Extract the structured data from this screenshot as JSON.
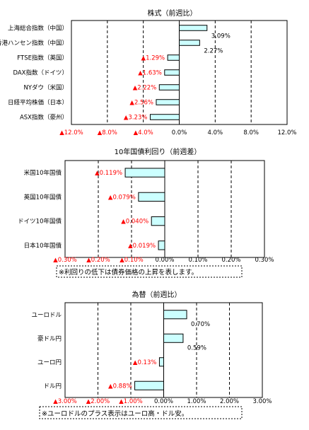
{
  "chart_data": [
    {
      "type": "bar",
      "orientation": "horizontal",
      "title": "株式（前週比）",
      "categories": [
        "上海総合指数（中国）",
        "香港ハンセン指数（中国）",
        "FTSE指数（英国）",
        "DAX指数（ドイツ）",
        "NYダウ（米国）",
        "日経平均株価（日本）",
        "ASX指数（豪州）"
      ],
      "values": [
        3.09,
        2.27,
        -1.29,
        -1.63,
        -2.22,
        -2.56,
        -3.23
      ],
      "value_labels": [
        "3.09%",
        "2.27%",
        "▲1.29%",
        "▲1.63%",
        "▲2.22%",
        "▲2.56%",
        "▲3.23%"
      ],
      "xlim": [
        -12,
        12
      ],
      "ticks": [
        -12,
        -8,
        -4,
        0,
        4,
        8,
        12
      ],
      "tick_labels": [
        "▲12.0%",
        "▲8.0%",
        "▲4.0%",
        "0.0%",
        "4.0%",
        "8.0%",
        "12.0%"
      ],
      "grid": true,
      "note": ""
    },
    {
      "type": "bar",
      "orientation": "horizontal",
      "title": "10年国債利回り（前週差）",
      "categories": [
        "米国10年国債",
        "英国10年国債",
        "ドイツ10年国債",
        "日本10年国債"
      ],
      "values": [
        -0.119,
        -0.079,
        -0.04,
        -0.019
      ],
      "value_labels": [
        "▲0.119%",
        "▲0.079%",
        "▲0.040%",
        "▲0.019%"
      ],
      "xlim": [
        -0.3,
        0.3
      ],
      "ticks": [
        -0.3,
        -0.2,
        -0.1,
        0,
        0.1,
        0.2,
        0.3
      ],
      "tick_labels": [
        "▲0.30%",
        "▲0.20%",
        "▲0.10%",
        "0.00%",
        "0.10%",
        "0.20%",
        "0.30%"
      ],
      "grid": true,
      "note": "※利回りの低下は債券価格の上昇を表します。"
    },
    {
      "type": "bar",
      "orientation": "horizontal",
      "title": "為替（前週比）",
      "categories": [
        "ユーロドル",
        "豪ドル円",
        "ユーロ円",
        "ドル円"
      ],
      "values": [
        0.7,
        0.59,
        -0.13,
        -0.88
      ],
      "value_labels": [
        "0.70%",
        "0.59%",
        "▲0.13%",
        "▲0.88%"
      ],
      "xlim": [
        -3,
        3
      ],
      "ticks": [
        -3,
        -2,
        -1,
        0,
        1,
        2,
        3
      ],
      "tick_labels": [
        "▲3.00%",
        "▲2.00%",
        "▲1.00%",
        "0.00%",
        "1.00%",
        "2.00%",
        "3.00%"
      ],
      "grid": true,
      "note": "※ユーロドルのプラス表示はユーロ高・ドル安。"
    }
  ],
  "colors": {
    "bar_fill": "#ccffff",
    "bar_stroke": "#000000",
    "negative_text": "#ff0000",
    "positive_text": "#000000"
  }
}
